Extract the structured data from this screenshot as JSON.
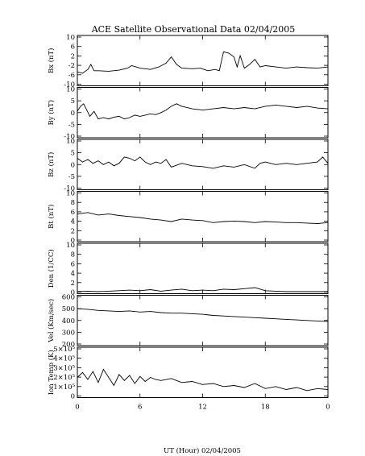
{
  "chart_data": {
    "type": "line",
    "title": "ACE Satellite Observational Data   02/04/2005",
    "xlabel": "UT (Hour)   02/04/2005",
    "x_ticks": [
      "0",
      "6",
      "12",
      "18",
      "0"
    ],
    "xlim": [
      0,
      24
    ],
    "panels": [
      {
        "id": "bx",
        "ylabel": "Bx (nT)",
        "yticks": [
          "10",
          "6",
          "2",
          "-2",
          "-6",
          "-10"
        ],
        "ylim": [
          -10,
          10
        ],
        "series": [
          {
            "x": [
              0,
              0.5,
              1.0,
              1.3,
              1.6,
              2.0,
              3.0,
              4.0,
              4.8,
              5.2,
              6.0,
              7.0,
              7.8,
              8.5,
              9.0,
              9.5,
              10.0,
              11.0,
              11.8,
              12.5,
              13.2,
              13.6,
              14.0,
              14.5,
              15.0,
              15.3,
              15.6,
              16.0,
              16.5,
              17.0,
              17.5,
              18.0,
              19.0,
              20.0,
              21.0,
              22.0,
              23.0,
              24.0
            ],
            "y": [
              -4.5,
              -5.0,
              -3.5,
              -1.5,
              -4.0,
              -4.0,
              -4.2,
              -3.8,
              -3.0,
              -2.0,
              -3.0,
              -3.5,
              -2.5,
              -1.0,
              1.5,
              -1.5,
              -3.0,
              -3.2,
              -3.0,
              -4.0,
              -3.5,
              -4.0,
              3.5,
              3.0,
              1.5,
              -2.5,
              2.0,
              -3.0,
              -1.5,
              0.5,
              -2.5,
              -2.0,
              -2.5,
              -3.0,
              -2.5,
              -2.8,
              -3.0,
              -2.5
            ]
          }
        ]
      },
      {
        "id": "by",
        "ylabel": "By (nT)",
        "yticks": [
          "10",
          "5",
          "0",
          "-5",
          "-10"
        ],
        "ylim": [
          -10,
          10
        ],
        "series": [
          {
            "x": [
              0,
              0.3,
              0.6,
              0.9,
              1.2,
              1.6,
              2.0,
              2.5,
              3.0,
              3.5,
              4.0,
              4.5,
              5.0,
              5.5,
              6.0,
              6.5,
              7.0,
              7.5,
              8.0,
              8.5,
              9.0,
              9.5,
              10.0,
              11.0,
              12.0,
              13.0,
              14.0,
              15.0,
              16.0,
              17.0,
              18.0,
              19.0,
              20.0,
              21.0,
              22.0,
              23.0,
              24.0
            ],
            "y": [
              0.5,
              2.5,
              3.5,
              1.0,
              -1.5,
              0.5,
              -2.5,
              -2.0,
              -2.5,
              -1.8,
              -1.5,
              -2.5,
              -2.0,
              -1.0,
              -1.5,
              -1.0,
              -0.5,
              -0.8,
              0.0,
              1.0,
              2.5,
              3.5,
              2.5,
              1.5,
              1.0,
              1.5,
              2.0,
              1.5,
              2.0,
              1.5,
              2.5,
              3.0,
              2.5,
              2.0,
              2.5,
              1.8,
              1.5
            ]
          }
        ]
      },
      {
        "id": "bz",
        "ylabel": "Bz (nT)",
        "yticks": [
          "10",
          "5",
          "0",
          "-5",
          "-10"
        ],
        "ylim": [
          -10,
          10
        ],
        "series": [
          {
            "x": [
              0,
              0.5,
              1.0,
              1.5,
              2.0,
              2.5,
              3.0,
              3.5,
              4.0,
              4.5,
              5.0,
              5.5,
              6.0,
              6.5,
              7.0,
              7.5,
              8.0,
              8.5,
              9.0,
              10.0,
              11.0,
              12.0,
              13.0,
              14.0,
              15.0,
              16.0,
              17.0,
              17.5,
              18.0,
              19.0,
              20.0,
              21.0,
              22.0,
              23.0,
              23.5,
              24.0
            ],
            "y": [
              2.5,
              1.0,
              2.0,
              0.5,
              1.5,
              0.0,
              1.0,
              -0.5,
              0.5,
              3.0,
              2.5,
              1.5,
              3.0,
              1.0,
              0.0,
              1.0,
              0.5,
              2.0,
              -1.0,
              0.5,
              -0.5,
              -0.8,
              -1.5,
              -0.5,
              -1.0,
              0.0,
              -1.5,
              0.5,
              1.0,
              0.0,
              0.5,
              0.0,
              0.5,
              1.0,
              3.0,
              0.5
            ]
          }
        ]
      },
      {
        "id": "bt",
        "ylabel": "Bt (nT)",
        "yticks": [
          "10",
          "8",
          "6",
          "4",
          "2",
          "0"
        ],
        "ylim": [
          0,
          10
        ],
        "series": [
          {
            "x": [
              0,
              1.0,
              2.0,
              3.0,
              4.0,
              5.0,
              6.0,
              7.0,
              8.0,
              9.0,
              10.0,
              11.0,
              12.0,
              13.0,
              14.0,
              15.0,
              16.0,
              17.0,
              18.0,
              19.0,
              20.0,
              21.0,
              22.0,
              23.0,
              24.0
            ],
            "y": [
              5.5,
              5.8,
              5.3,
              5.5,
              5.2,
              5.0,
              4.8,
              4.5,
              4.3,
              4.0,
              4.5,
              4.3,
              4.2,
              3.8,
              4.0,
              4.1,
              4.0,
              3.8,
              4.0,
              3.9,
              3.8,
              3.8,
              3.7,
              3.6,
              3.8
            ]
          }
        ]
      },
      {
        "id": "den",
        "ylabel": "Den (1/CC)",
        "yticks": [
          "10",
          "8",
          "6",
          "4",
          "2",
          "0"
        ],
        "ylim": [
          0,
          10
        ],
        "series": [
          {
            "x": [
              0,
              1.0,
              2.0,
              3.0,
              4.0,
              5.0,
              6.0,
              7.0,
              8.0,
              9.0,
              10.0,
              11.0,
              12.0,
              13.0,
              14.0,
              15.0,
              16.0,
              17.0,
              18.0,
              19.0,
              20.0,
              21.0,
              22.0,
              23.0,
              24.0
            ],
            "y": [
              0.4,
              0.5,
              0.4,
              0.5,
              0.6,
              0.7,
              0.6,
              0.8,
              0.5,
              0.7,
              0.9,
              0.6,
              0.7,
              0.6,
              0.9,
              0.8,
              1.0,
              1.2,
              0.6,
              0.5,
              0.4,
              0.4,
              0.4,
              0.4,
              0.4
            ]
          }
        ]
      },
      {
        "id": "vel",
        "ylabel": "Vel (Km/sec)",
        "yticks": [
          "600",
          "500",
          "400",
          "300",
          "200"
        ],
        "ylim": [
          200,
          650
        ],
        "series": [
          {
            "x": [
              0,
              1.0,
              2.0,
              3.0,
              4.0,
              5.0,
              6.0,
              7.0,
              8.0,
              9.0,
              10.0,
              11.0,
              12.0,
              13.0,
              14.0,
              15.0,
              16.0,
              17.0,
              18.0,
              19.0,
              20.0,
              21.0,
              22.0,
              23.0,
              24.0
            ],
            "y": [
              530,
              525,
              515,
              510,
              505,
              510,
              500,
              505,
              495,
              490,
              490,
              485,
              480,
              470,
              465,
              460,
              455,
              450,
              445,
              440,
              435,
              430,
              425,
              420,
              415
            ]
          }
        ]
      },
      {
        "id": "temp",
        "ylabel": "Ion Temp (K)",
        "yticks": [
          "5×10⁵",
          "4×10⁵",
          "3×10⁵",
          "2×10⁵",
          "1×10⁵",
          "0"
        ],
        "ylim": [
          0,
          500000
        ],
        "series": [
          {
            "x": [
              0,
              0.5,
              1.0,
              1.5,
              2.0,
              2.5,
              3.0,
              3.5,
              4.0,
              4.5,
              5.0,
              5.5,
              6.0,
              6.5,
              7.0,
              7.5,
              8.0,
              9.0,
              10.0,
              11.0,
              12.0,
              13.0,
              14.0,
              15.0,
              16.0,
              17.0,
              18.0,
              19.0,
              20.0,
              21.0,
              22.0,
              23.0,
              24.0
            ],
            "y": [
              200000,
              250000,
              180000,
              260000,
              150000,
              280000,
              200000,
              120000,
              230000,
              170000,
              220000,
              140000,
              210000,
              160000,
              200000,
              180000,
              170000,
              190000,
              150000,
              160000,
              130000,
              140000,
              110000,
              120000,
              100000,
              140000,
              90000,
              110000,
              80000,
              100000,
              70000,
              90000,
              80000
            ]
          }
        ]
      }
    ]
  }
}
